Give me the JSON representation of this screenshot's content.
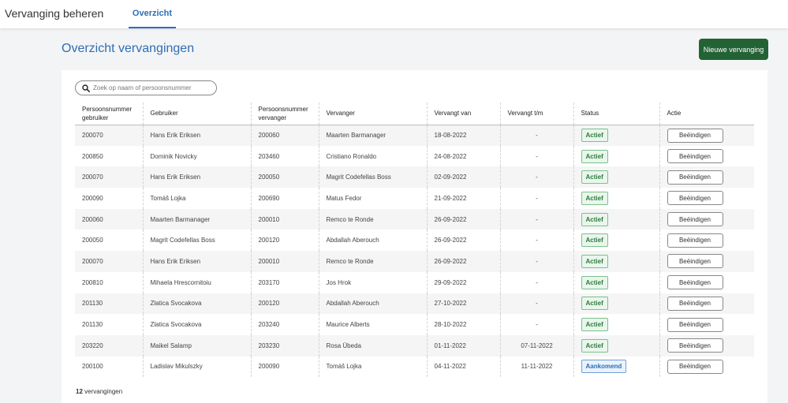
{
  "header": {
    "app_title": "Vervanging beheren",
    "tabs": [
      {
        "label": "Overzicht",
        "active": true
      }
    ]
  },
  "main": {
    "title": "Overzicht vervangingen",
    "new_button": "Nieuwe vervanging",
    "search": {
      "placeholder": "Zoek op naam of persoonsnummer",
      "value": ""
    },
    "columns": [
      "Persoonsnummer gebruiker",
      "Gebruiker",
      "Persoonsnummer vervanger",
      "Vervanger",
      "Vervangt van",
      "Vervangt t/m",
      "Status",
      "Actie"
    ],
    "rows": [
      {
        "user_nr": "200070",
        "user": "Hans Erik Eriksen",
        "repl_nr": "200060",
        "replacement": "Maarten Barmanager",
        "from": "18-08-2022",
        "until": "-",
        "status": "Actief",
        "action": "Beëindigen"
      },
      {
        "user_nr": "200850",
        "user": "Dominik Novicky",
        "repl_nr": "203460",
        "replacement": "Cristiano Ronaldo",
        "from": "24-08-2022",
        "until": "-",
        "status": "Actief",
        "action": "Beëindigen"
      },
      {
        "user_nr": "200070",
        "user": "Hans Erik Eriksen",
        "repl_nr": "200050",
        "replacement": "Magrit Codefellas Boss",
        "from": "02-09-2022",
        "until": "-",
        "status": "Actief",
        "action": "Beëindigen"
      },
      {
        "user_nr": "200090",
        "user": "Tomáš Lojka",
        "repl_nr": "200690",
        "replacement": "Matus Fedor",
        "from": "21-09-2022",
        "until": "-",
        "status": "Actief",
        "action": "Beëindigen"
      },
      {
        "user_nr": "200060",
        "user": "Maarten Barmanager",
        "repl_nr": "200010",
        "replacement": "Remco te Ronde",
        "from": "26-09-2022",
        "until": "-",
        "status": "Actief",
        "action": "Beëindigen"
      },
      {
        "user_nr": "200050",
        "user": "Magrit Codefellas Boss",
        "repl_nr": "200120",
        "replacement": "Abdallah Aberouch",
        "from": "26-09-2022",
        "until": "-",
        "status": "Actief",
        "action": "Beëindigen"
      },
      {
        "user_nr": "200070",
        "user": "Hans Erik Eriksen",
        "repl_nr": "200010",
        "replacement": "Remco te Ronde",
        "from": "26-09-2022",
        "until": "-",
        "status": "Actief",
        "action": "Beëindigen"
      },
      {
        "user_nr": "200810",
        "user": "Mihaela Hrescornitoiu",
        "repl_nr": "203170",
        "replacement": "Jos Hrok",
        "from": "29-09-2022",
        "until": "-",
        "status": "Actief",
        "action": "Beëindigen"
      },
      {
        "user_nr": "201130",
        "user": "Zlatica Svocakova",
        "repl_nr": "200120",
        "replacement": "Abdallah Aberouch",
        "from": "27-10-2022",
        "until": "-",
        "status": "Actief",
        "action": "Beëindigen"
      },
      {
        "user_nr": "201130",
        "user": "Zlatica Svocakova",
        "repl_nr": "203240",
        "replacement": "Maurice Alberts",
        "from": "28-10-2022",
        "until": "-",
        "status": "Actief",
        "action": "Beëindigen"
      },
      {
        "user_nr": "203220",
        "user": "Maikel Salamp",
        "repl_nr": "203230",
        "replacement": "Rosa Übeda",
        "from": "01-11-2022",
        "until": "07-11-2022",
        "status": "Actief",
        "action": "Beëindigen"
      },
      {
        "user_nr": "200100",
        "user": "Ladislav Mikulszky",
        "repl_nr": "200090",
        "replacement": "Tomáš Lojka",
        "from": "04-11-2022",
        "until": "11-11-2022",
        "status": "Aankomend",
        "action": "Beëindigen"
      }
    ],
    "footer": {
      "count": "12",
      "count_label": "vervangingen"
    }
  },
  "colors": {
    "accent": "#2e6eb3",
    "primary_button": "#236235",
    "status_active": "#2d7a3e",
    "status_upcoming": "#2e6eb3"
  },
  "icons": {
    "search": "search-icon"
  }
}
